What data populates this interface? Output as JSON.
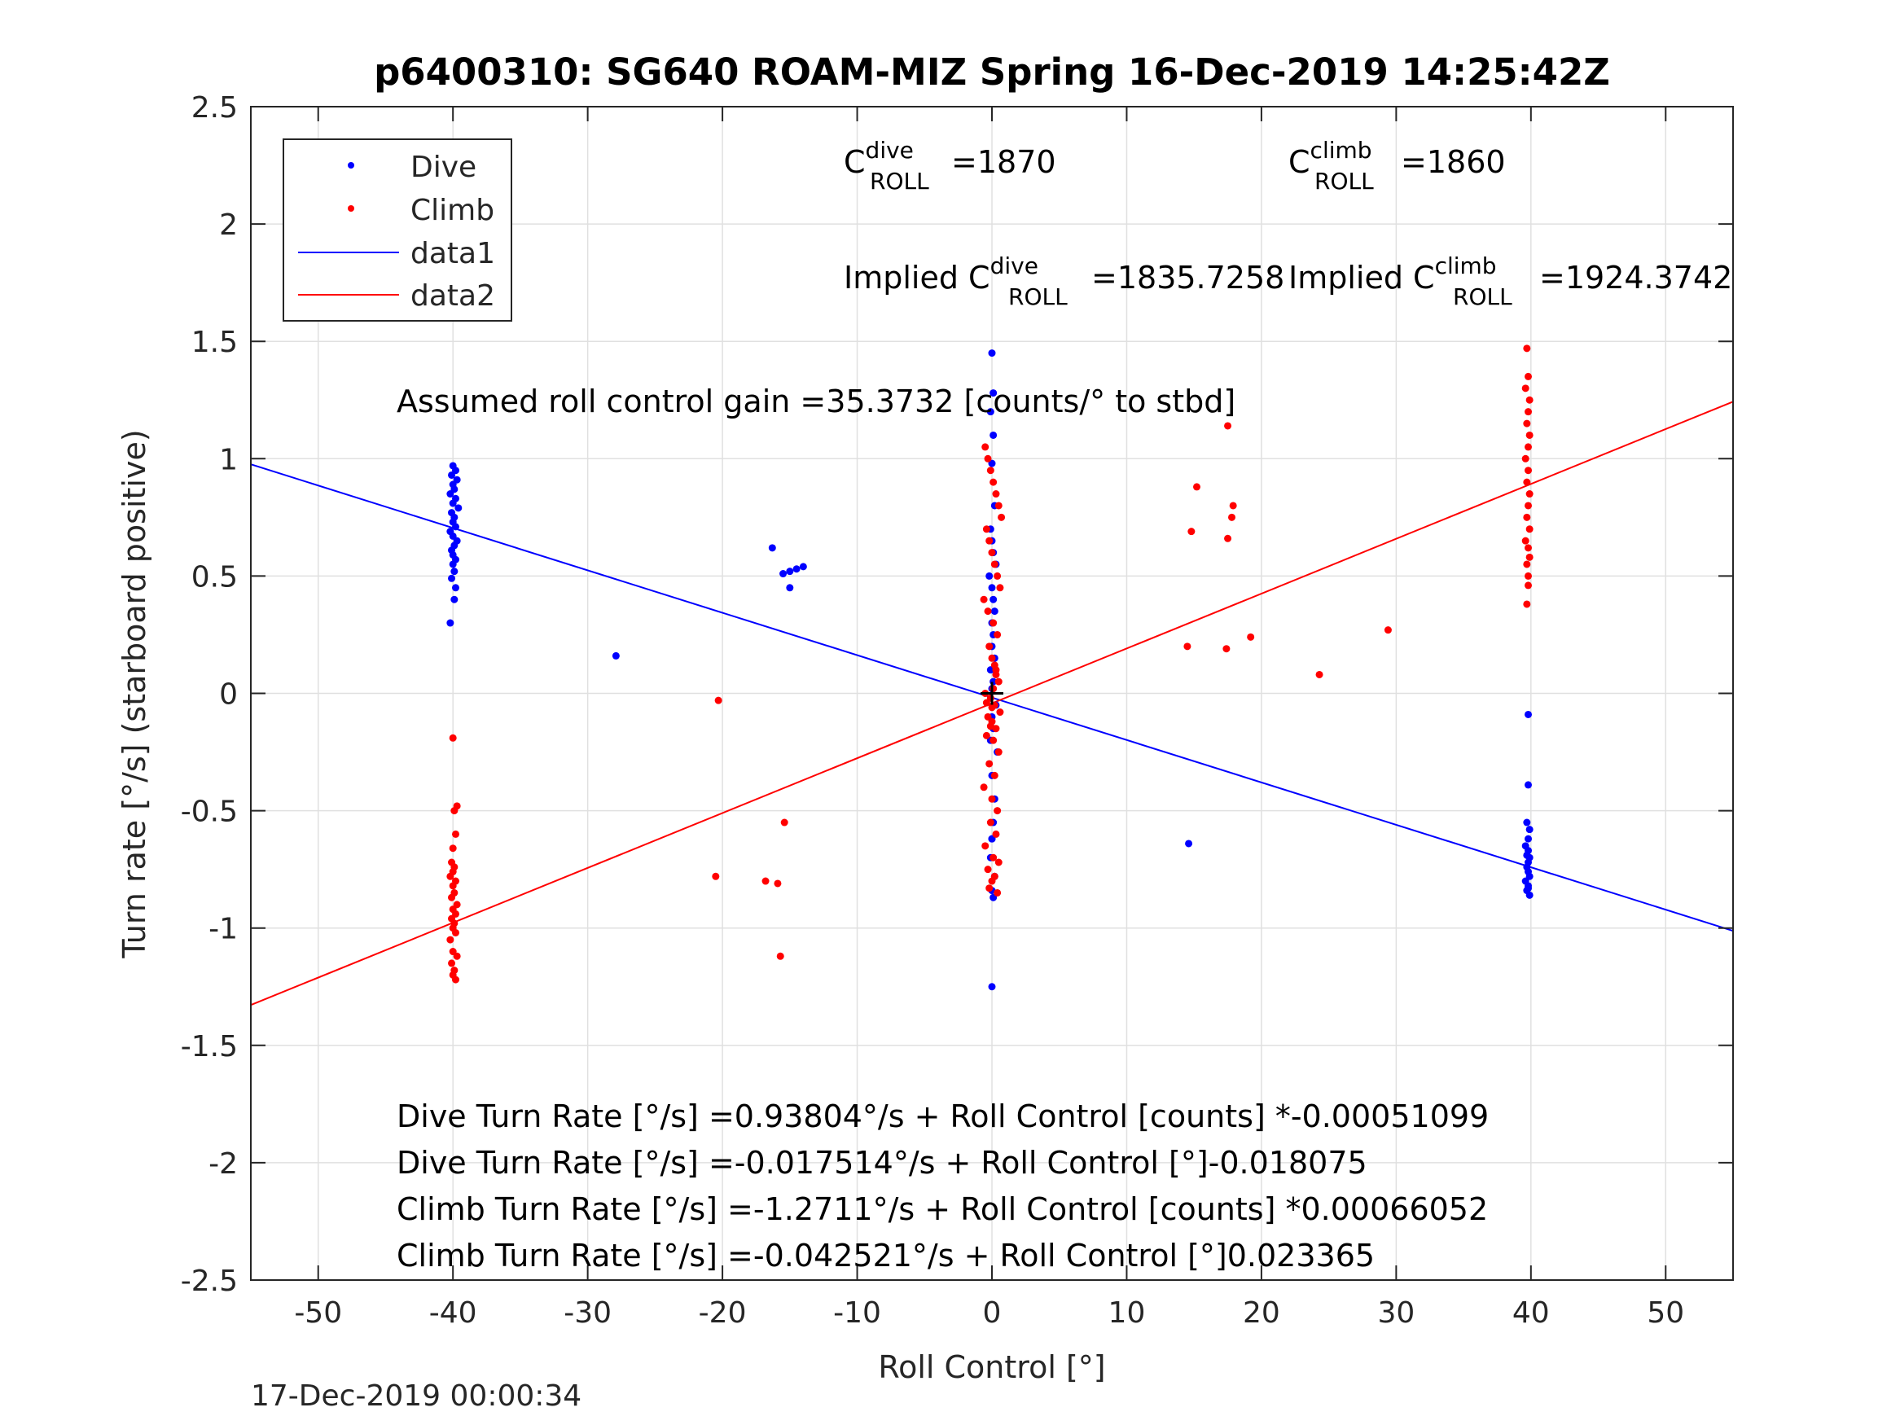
{
  "chart_data": {
    "type": "scatter",
    "title": "p6400310: SG640 ROAM-MIZ Spring 16-Dec-2019 14:25:42Z",
    "xlabel": "Roll Control [°]",
    "ylabel": "Turn rate [°/s] (starboard positive)",
    "xlim": [
      -55,
      55
    ],
    "ylim": [
      -2.5,
      2.5
    ],
    "xticks": [
      -50,
      -40,
      -30,
      -20,
      -10,
      0,
      10,
      20,
      30,
      40,
      50
    ],
    "yticks": [
      -2.5,
      -2,
      -1.5,
      -1,
      -0.5,
      0,
      0.5,
      1,
      1.5,
      2,
      2.5
    ],
    "grid": true,
    "legend_position": "top-left",
    "legend": [
      "Dive",
      "Climb",
      "data1",
      "data2"
    ],
    "colors": {
      "dive": "#0000ff",
      "climb": "#ff0000",
      "axis": "#262626",
      "grid": "#e0e0e0",
      "zero_marker": "#000000"
    },
    "series": [
      {
        "name": "Dive",
        "kind": "points",
        "x": [
          -40,
          -39.8,
          -40.1,
          -39.7,
          -40,
          -39.9,
          -40.2,
          -39.8,
          -40,
          -39.6,
          -40.1,
          -39.9,
          -40,
          -39.8,
          -40.2,
          -40,
          -39.7,
          -39.9,
          -40.1,
          -40,
          -39.8,
          -40,
          -39.9,
          -40.1,
          -39.8,
          -39.9,
          -40.2,
          -27.9,
          -16.3,
          -15.5,
          -15,
          -14.5,
          -14,
          -15,
          14.6,
          0,
          0.1,
          -0.1,
          0.1,
          0,
          0.2,
          -0.1,
          0,
          0.1,
          0.3,
          -0.2,
          0,
          0.1,
          0.2,
          0,
          0.1,
          0,
          0.2,
          -0.1,
          0.1,
          0,
          0.3,
          0,
          0.1,
          -0.1,
          0.4,
          0,
          0.2,
          0.1,
          0,
          -0.1,
          0.2,
          0,
          0.1,
          0,
          0,
          39.8,
          39.8,
          39.7,
          39.9,
          39.8,
          39.6,
          39.8,
          39.7,
          39.9,
          39.8,
          39.7,
          39.8,
          39.9,
          39.6,
          39.8,
          39.7,
          39.9,
          39.8
        ],
        "y": [
          0.97,
          0.95,
          0.93,
          0.91,
          0.89,
          0.87,
          0.85,
          0.83,
          0.81,
          0.79,
          0.77,
          0.75,
          0.73,
          0.71,
          0.69,
          0.67,
          0.65,
          0.63,
          0.61,
          0.59,
          0.57,
          0.55,
          0.52,
          0.49,
          0.45,
          0.4,
          0.3,
          0.16,
          0.62,
          0.51,
          0.52,
          0.53,
          0.54,
          0.45,
          -0.64,
          1.45,
          1.28,
          1.2,
          1.1,
          0.98,
          0.8,
          0.7,
          0.65,
          0.6,
          0.55,
          0.5,
          0.45,
          0.4,
          0.35,
          0.3,
          0.25,
          0.2,
          0.15,
          0.1,
          0.05,
          0.02,
          -0.05,
          -0.1,
          -0.15,
          -0.2,
          -0.25,
          -0.35,
          -0.45,
          -0.55,
          -0.62,
          -0.7,
          -0.78,
          -0.84,
          -0.87,
          -1.25,
          -0.62,
          -0.09,
          -0.39,
          -0.55,
          -0.58,
          -0.62,
          -0.65,
          -0.67,
          -0.69,
          -0.7,
          -0.72,
          -0.74,
          -0.76,
          -0.78,
          -0.8,
          -0.82,
          -0.84,
          -0.86,
          -0.83
        ],
        "color": "#0000ff"
      },
      {
        "name": "Climb",
        "kind": "points",
        "x": [
          -39.8,
          -40,
          -39.9,
          -40.1,
          -39.7,
          -40,
          -40.2,
          -39.8,
          -40,
          -39.9,
          -40.1,
          -39.8,
          -40,
          -39.7,
          -40.1,
          -39.9,
          -40,
          -39.8,
          -40.2,
          -40,
          -39.9,
          -40.1,
          -40,
          -39.8,
          -39.9,
          -39.7,
          -40,
          -20.3,
          -20.5,
          -16.8,
          -15.9,
          -15.4,
          -15.7,
          -0.5,
          -0.3,
          -0.1,
          0.1,
          0.3,
          0.5,
          0.7,
          -0.4,
          -0.2,
          0,
          0.2,
          0.4,
          0.6,
          -0.6,
          -0.3,
          0.1,
          0.4,
          -0.2,
          0,
          0.3,
          0.5,
          -0.5,
          -0.1,
          0.2,
          0.6,
          -0.3,
          0,
          0.3,
          -0.4,
          0.1,
          0.5,
          -0.2,
          0.2,
          -0.6,
          0,
          0.4,
          -0.1,
          0.3,
          -0.5,
          0.1,
          0.5,
          -0.3,
          0.2,
          0,
          -0.2,
          0.4,
          0.1,
          -0.4,
          0.3,
          0,
          0.2,
          -0.1,
          14.5,
          14.8,
          15.2,
          17.4,
          17.5,
          17.8,
          17.9,
          17.5,
          19.2,
          24.3,
          29.4,
          39.7,
          39.8,
          39.6,
          39.9,
          39.8,
          39.7,
          39.9,
          39.8,
          39.6,
          39.8,
          39.7,
          39.9,
          39.8,
          39.7,
          39.9,
          39.6,
          39.8,
          39.9,
          39.7,
          39.8,
          39.8,
          39.7
        ],
        "y": [
          -1.22,
          -1.2,
          -1.18,
          -1.15,
          -1.12,
          -1.1,
          -1.05,
          -1.02,
          -1,
          -0.98,
          -0.96,
          -0.94,
          -0.92,
          -0.9,
          -0.87,
          -0.85,
          -0.82,
          -0.8,
          -0.78,
          -0.76,
          -0.74,
          -0.72,
          -0.66,
          -0.6,
          -0.5,
          -0.48,
          -0.19,
          -0.03,
          -0.78,
          -0.8,
          -0.81,
          -0.55,
          -1.12,
          1.05,
          1,
          0.95,
          0.9,
          0.85,
          0.8,
          0.75,
          0.7,
          0.65,
          0.6,
          0.55,
          0.5,
          0.45,
          0.4,
          0.35,
          0.3,
          0.25,
          0.2,
          0.15,
          0.1,
          0.05,
          0,
          -0.02,
          -0.05,
          -0.08,
          -0.1,
          -0.12,
          -0.15,
          -0.18,
          -0.2,
          -0.25,
          -0.3,
          -0.35,
          -0.4,
          -0.45,
          -0.5,
          -0.55,
          -0.6,
          -0.65,
          -0.7,
          -0.72,
          -0.75,
          -0.78,
          -0.8,
          -0.83,
          -0.85,
          0.02,
          -0.04,
          0.08,
          -0.06,
          0.12,
          -0.14,
          0.2,
          0.69,
          0.88,
          0.19,
          0.66,
          0.75,
          0.8,
          1.14,
          0.24,
          0.08,
          0.27,
          1.47,
          1.35,
          1.3,
          1.25,
          1.2,
          1.15,
          1.1,
          1.05,
          1,
          0.95,
          0.9,
          0.85,
          0.8,
          0.75,
          0.7,
          0.65,
          0.62,
          0.58,
          0.55,
          0.5,
          0.46,
          0.38
        ],
        "color": "#ff0000"
      },
      {
        "name": "data1",
        "kind": "line",
        "x": [
          -55,
          55
        ],
        "y": [
          0.976,
          -1.012
        ],
        "color": "#0000ff"
      },
      {
        "name": "data2",
        "kind": "line",
        "x": [
          -55,
          55
        ],
        "y": [
          -1.328,
          1.243
        ],
        "color": "#ff0000"
      }
    ],
    "annotations": {
      "c_dive_base": "C",
      "c_dive_sup": "dive",
      "c_dive_sub": "ROLL",
      "c_dive_value": "=1870",
      "c_climb_base": "C",
      "c_climb_sup": "climb",
      "c_climb_sub": "ROLL",
      "c_climb_value": "=1860",
      "implied_dive_base": "Implied C",
      "implied_dive_sup": "dive",
      "implied_dive_sub": "ROLL",
      "implied_dive_value": "=1835.7258",
      "implied_climb_base": "Implied C",
      "implied_climb_sup": "climb",
      "implied_climb_sub": "ROLL",
      "implied_climb_value": "=1924.3742",
      "gain": "Assumed roll control gain =35.3732 [counts/° to stbd]",
      "eq1": "Dive Turn Rate [°/s] =0.93804°/s + Roll Control [counts] *-0.00051099",
      "eq2": "Dive Turn Rate [°/s] =-0.017514°/s + Roll Control [°]-0.018075",
      "eq3": "Climb Turn Rate [°/s] =-1.2711°/s + Roll Control [counts] *0.00066052",
      "eq4": "Climb Turn Rate [°/s] =-0.042521°/s + Roll Control [°]0.023365"
    },
    "timestamp": "17-Dec-2019 00:00:34"
  }
}
